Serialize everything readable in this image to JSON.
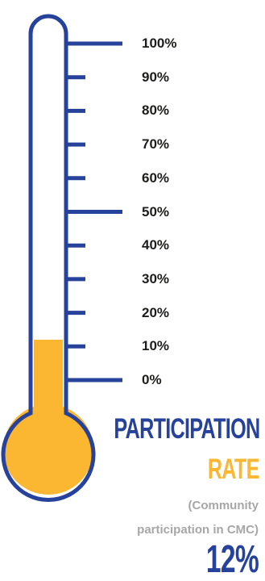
{
  "title_line1": "PARTICIPATION",
  "title_line2": "RATE",
  "subtitle_line1": "(Community",
  "subtitle_line2": "participation in CMC)",
  "value_label": "12%",
  "fill_fraction": 0.12,
  "colors": {
    "outline": "#26429a",
    "fill": "#fbb731",
    "text": "#1d1d1b",
    "subtitle": "#a7a7a7"
  },
  "scale_labels": [
    "100%",
    "90%",
    "80%",
    "70%",
    "60%",
    "50%",
    "40%",
    "30%",
    "20%",
    "10%",
    "0%"
  ]
}
